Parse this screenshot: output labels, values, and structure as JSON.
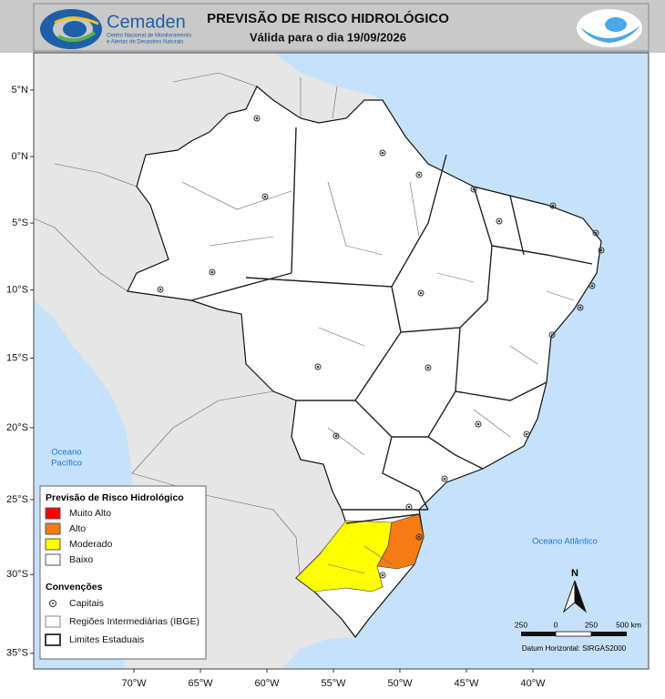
{
  "header": {
    "logo_name": "Cemaden",
    "logo_tagline": [
      "Centro Nacional de Monitoramento",
      "e Alertas de Desastres Naturais"
    ],
    "title": "PREVISÃO DE RISCO HIDROLÓGICO",
    "subtitle": "Válida para o dia 19/09/2026"
  },
  "map": {
    "lat_ticks": [
      {
        "value": 5,
        "label": "5°N"
      },
      {
        "value": 0,
        "label": "0°N"
      },
      {
        "value": -5,
        "label": "5°S"
      },
      {
        "value": -10,
        "label": "10°S"
      },
      {
        "value": -15,
        "label": "15°S"
      },
      {
        "value": -20,
        "label": "20°S"
      },
      {
        "value": -25,
        "label": "25°S"
      },
      {
        "value": -30,
        "label": "30°S"
      },
      {
        "value": -35,
        "label": "35°S"
      }
    ],
    "lon_ticks": [
      {
        "value": -70,
        "label": "70°W"
      },
      {
        "value": -65,
        "label": "65°W"
      },
      {
        "value": -60,
        "label": "60°W"
      },
      {
        "value": -55,
        "label": "55°W"
      },
      {
        "value": -50,
        "label": "50°W"
      },
      {
        "value": -45,
        "label": "45°W"
      },
      {
        "value": -40,
        "label": "40°W"
      }
    ],
    "pacific_label": [
      "Oceano",
      "Pacífico"
    ],
    "atlantic_label": "Oceano Atlântico"
  },
  "legend": {
    "title": "Previsão de Risco Hidrológico",
    "classes": [
      {
        "label": "Muito Alto",
        "color": "#ff0000"
      },
      {
        "label": "Alto",
        "color": "#f57c14"
      },
      {
        "label": "Moderado",
        "color": "#ffff00"
      },
      {
        "label": "Baixo",
        "color": "#ffffff"
      }
    ],
    "conventions_title": "Convenções",
    "conventions": [
      "Capitais",
      "Regiões Intermediárias (IBGE)",
      "Limites Estaduais"
    ]
  },
  "scale_bar": {
    "labels": [
      "250",
      "0",
      "250",
      "500 km"
    ],
    "datum": "Datum Horizontal: SIRGAS2000"
  },
  "north": "N"
}
